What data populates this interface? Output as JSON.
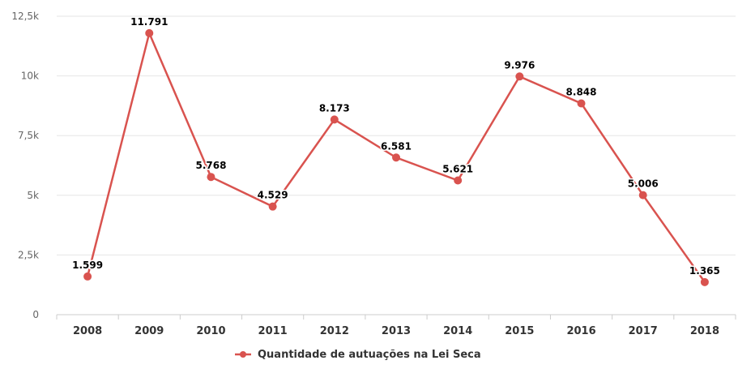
{
  "chart_data": {
    "type": "line",
    "title": "",
    "xlabel": "",
    "ylabel": "",
    "categories": [
      "2008",
      "2009",
      "2010",
      "2011",
      "2012",
      "2013",
      "2014",
      "2015",
      "2016",
      "2017",
      "2018"
    ],
    "series": [
      {
        "name": "Quantidade de autuações na Lei Seca",
        "values": [
          1599,
          11791,
          5768,
          4529,
          8173,
          6581,
          5621,
          9976,
          8848,
          5006,
          1365
        ],
        "data_labels": [
          "1.599",
          "11.791",
          "5.768",
          "4.529",
          "8.173",
          "6.581",
          "5.621",
          "9.976",
          "8.848",
          "5.006",
          "1.365"
        ],
        "color": "#d9534f"
      }
    ],
    "ylim": [
      0,
      12500
    ],
    "yticks": [
      0,
      2500,
      5000,
      7500,
      10000,
      12500
    ],
    "ytick_labels": [
      "0",
      "2,5k",
      "5k",
      "7,5k",
      "10k",
      "12,5k"
    ],
    "grid": true,
    "legend_position": "bottom-center"
  }
}
